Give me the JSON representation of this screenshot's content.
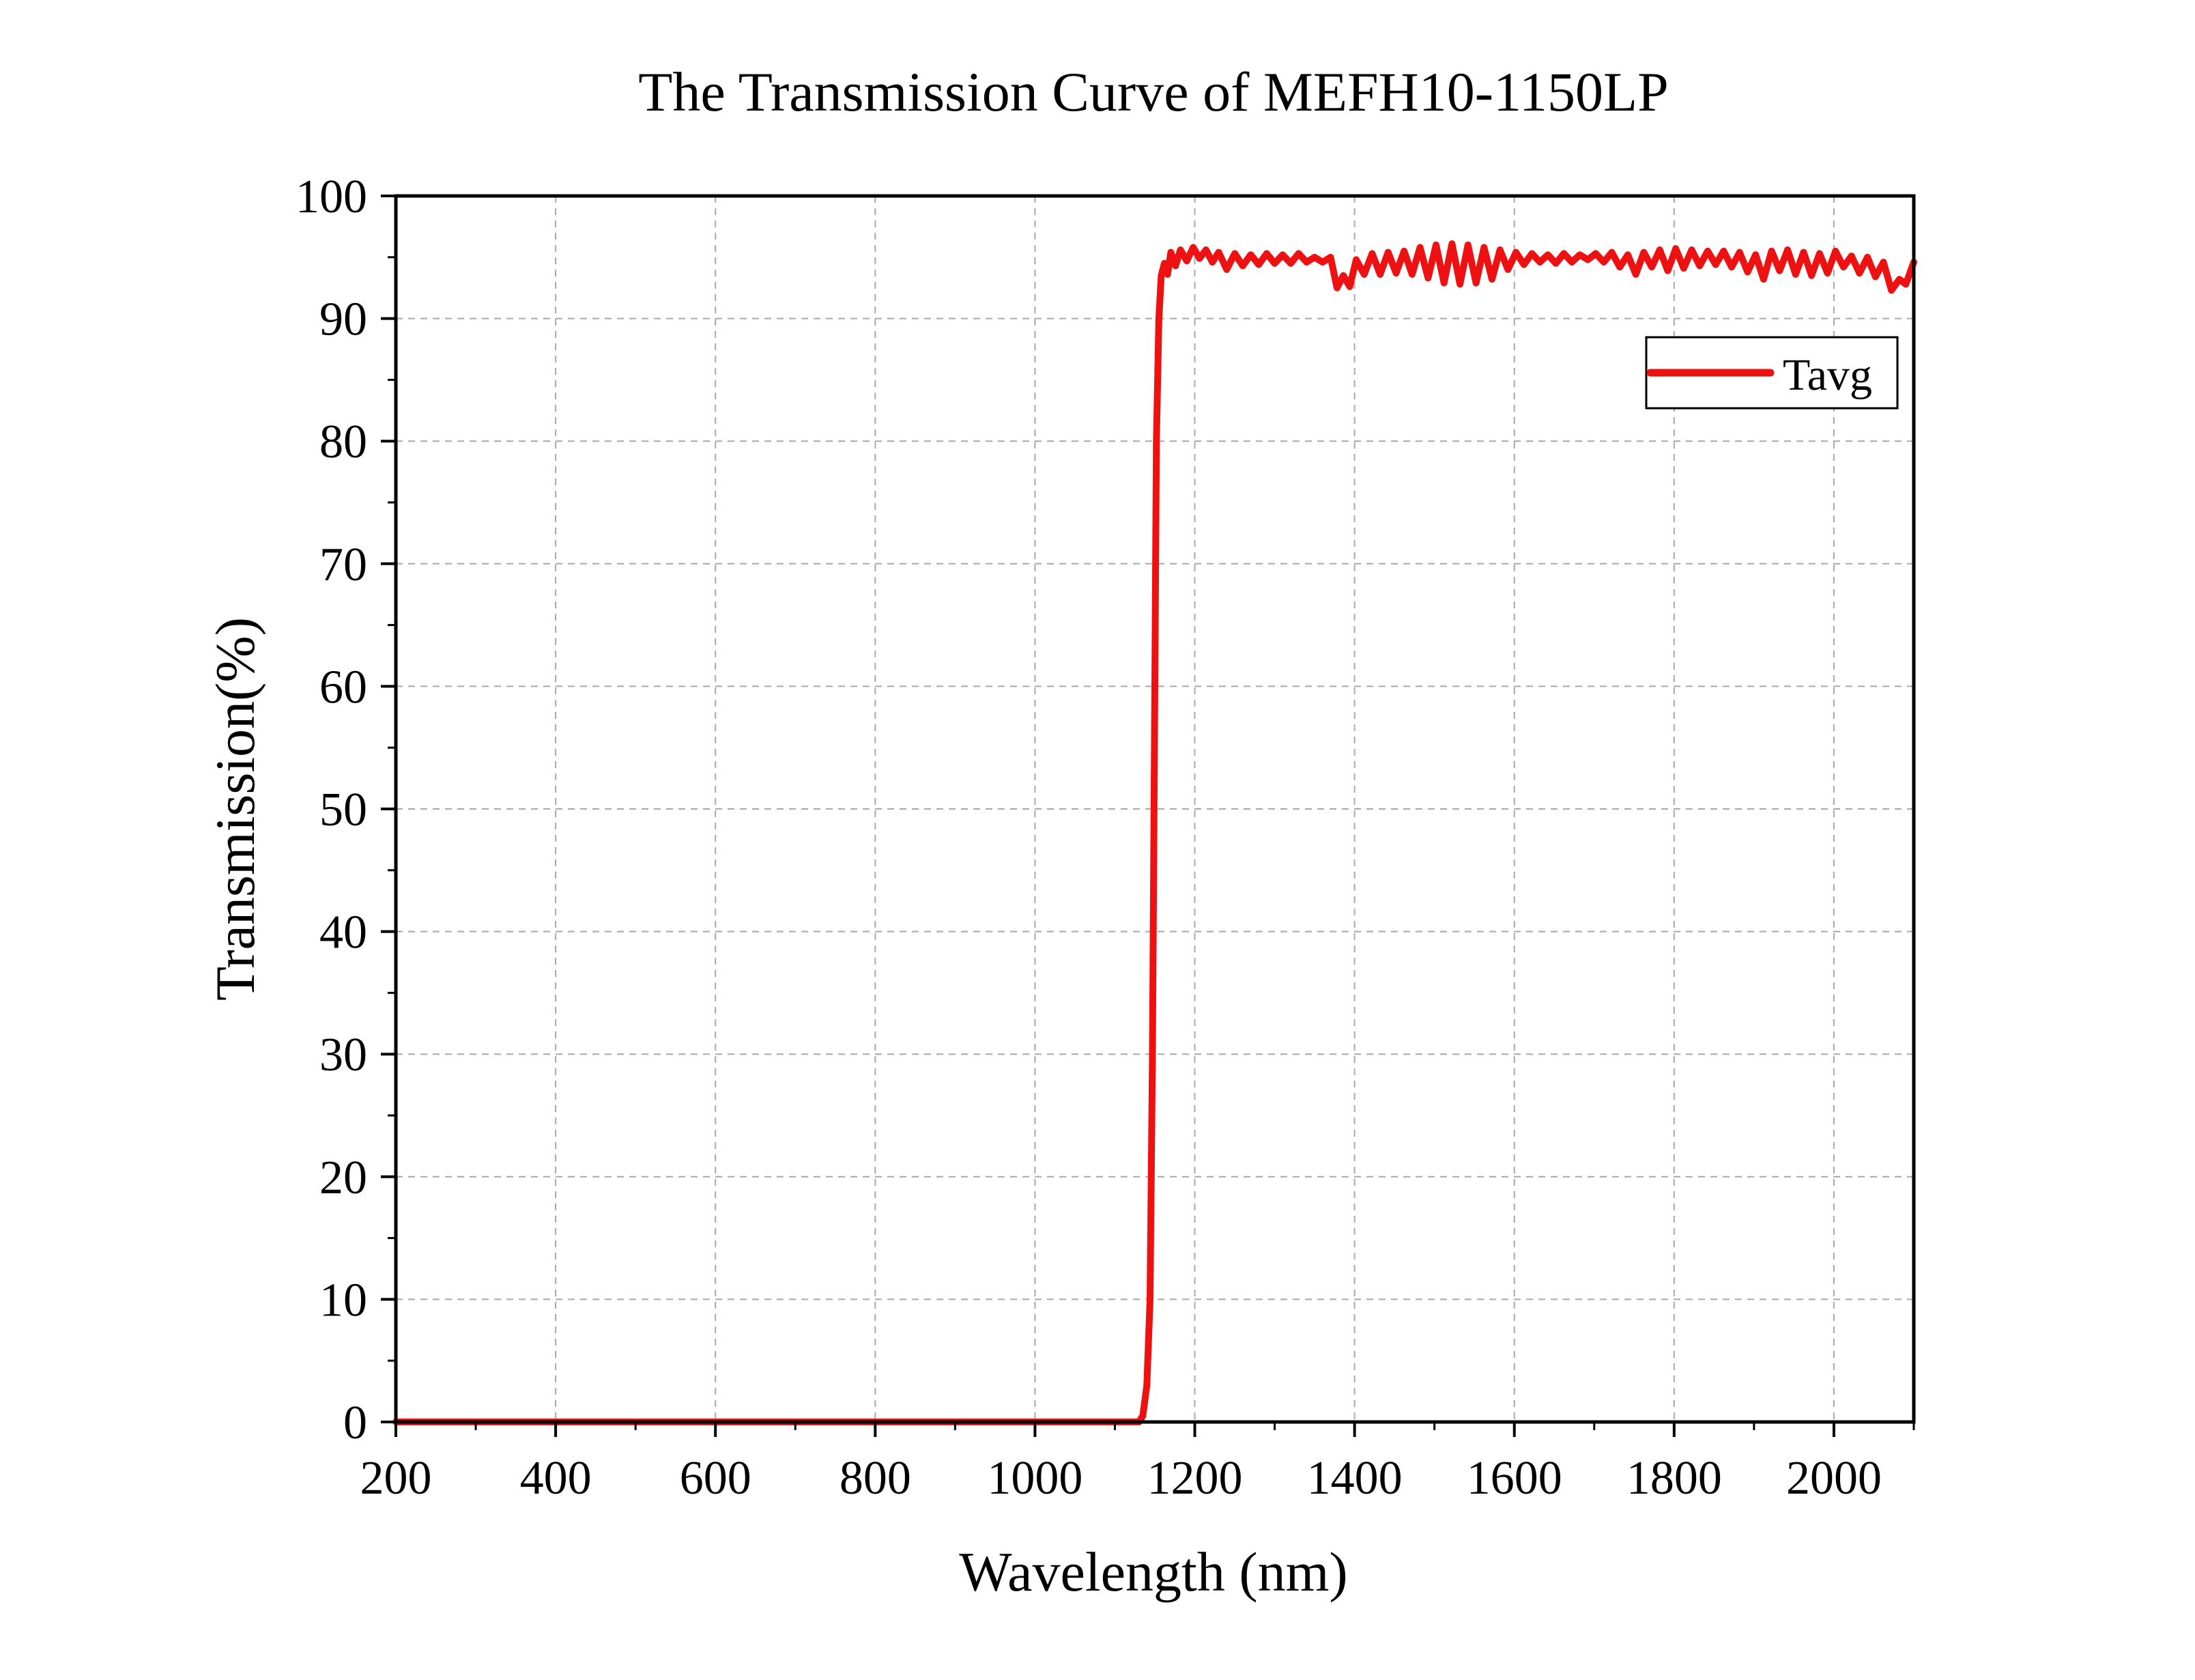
{
  "chart_data": {
    "type": "line",
    "title": "The Transmission Curve of MEFH10-1150LP",
    "xlabel": "Wavelength (nm)",
    "ylabel": "Transmission(%)",
    "xlim": [
      200,
      2100
    ],
    "ylim": [
      0,
      100
    ],
    "x_ticks": [
      200,
      400,
      600,
      800,
      1000,
      1200,
      1400,
      1600,
      1800,
      2000
    ],
    "y_ticks": [
      0,
      10,
      20,
      30,
      40,
      50,
      60,
      70,
      80,
      90,
      100
    ],
    "grid": true,
    "legend_position": "top-right",
    "series": [
      {
        "name": "Tavg",
        "color": "#ee1111",
        "points": [
          [
            200,
            0
          ],
          [
            1000,
            0
          ],
          [
            1130,
            0
          ],
          [
            1135,
            0.5
          ],
          [
            1140,
            3
          ],
          [
            1144,
            10
          ],
          [
            1147,
            30
          ],
          [
            1150,
            60
          ],
          [
            1152,
            80
          ],
          [
            1155,
            90
          ],
          [
            1158,
            93.5
          ],
          [
            1162,
            94.5
          ],
          [
            1166,
            93.6
          ],
          [
            1170,
            95.4
          ],
          [
            1176,
            94.3
          ],
          [
            1182,
            95.6
          ],
          [
            1190,
            94.7
          ],
          [
            1198,
            95.8
          ],
          [
            1206,
            94.9
          ],
          [
            1214,
            95.6
          ],
          [
            1222,
            94.6
          ],
          [
            1230,
            95.4
          ],
          [
            1240,
            94.0
          ],
          [
            1250,
            95.3
          ],
          [
            1260,
            94.3
          ],
          [
            1270,
            95.2
          ],
          [
            1280,
            94.4
          ],
          [
            1290,
            95.3
          ],
          [
            1300,
            94.5
          ],
          [
            1310,
            95.2
          ],
          [
            1320,
            94.5
          ],
          [
            1330,
            95.3
          ],
          [
            1340,
            94.6
          ],
          [
            1350,
            95.0
          ],
          [
            1360,
            94.6
          ],
          [
            1370,
            95.0
          ],
          [
            1378,
            92.5
          ],
          [
            1386,
            93.5
          ],
          [
            1394,
            92.6
          ],
          [
            1402,
            94.8
          ],
          [
            1412,
            93.6
          ],
          [
            1422,
            95.3
          ],
          [
            1432,
            93.6
          ],
          [
            1442,
            95.4
          ],
          [
            1452,
            93.7
          ],
          [
            1462,
            95.5
          ],
          [
            1472,
            93.6
          ],
          [
            1482,
            95.8
          ],
          [
            1492,
            93.3
          ],
          [
            1502,
            96.0
          ],
          [
            1512,
            92.9
          ],
          [
            1522,
            96.1
          ],
          [
            1532,
            92.8
          ],
          [
            1542,
            96.0
          ],
          [
            1552,
            92.9
          ],
          [
            1562,
            95.8
          ],
          [
            1572,
            93.2
          ],
          [
            1582,
            95.6
          ],
          [
            1592,
            94.0
          ],
          [
            1602,
            95.4
          ],
          [
            1612,
            94.4
          ],
          [
            1622,
            95.3
          ],
          [
            1632,
            94.6
          ],
          [
            1642,
            95.2
          ],
          [
            1652,
            94.5
          ],
          [
            1662,
            95.3
          ],
          [
            1672,
            94.6
          ],
          [
            1682,
            95.2
          ],
          [
            1692,
            94.8
          ],
          [
            1702,
            95.3
          ],
          [
            1712,
            94.6
          ],
          [
            1722,
            95.4
          ],
          [
            1732,
            94.2
          ],
          [
            1742,
            95.2
          ],
          [
            1752,
            93.6
          ],
          [
            1762,
            95.4
          ],
          [
            1772,
            94.2
          ],
          [
            1782,
            95.6
          ],
          [
            1792,
            93.9
          ],
          [
            1802,
            95.7
          ],
          [
            1812,
            94.1
          ],
          [
            1822,
            95.6
          ],
          [
            1832,
            94.3
          ],
          [
            1842,
            95.5
          ],
          [
            1852,
            94.4
          ],
          [
            1862,
            95.5
          ],
          [
            1872,
            94.2
          ],
          [
            1882,
            95.4
          ],
          [
            1892,
            93.8
          ],
          [
            1902,
            95.2
          ],
          [
            1912,
            93.2
          ],
          [
            1922,
            95.5
          ],
          [
            1932,
            93.9
          ],
          [
            1942,
            95.6
          ],
          [
            1952,
            93.6
          ],
          [
            1962,
            95.4
          ],
          [
            1972,
            93.5
          ],
          [
            1982,
            95.3
          ],
          [
            1992,
            93.7
          ],
          [
            2002,
            95.5
          ],
          [
            2012,
            94.2
          ],
          [
            2022,
            95.1
          ],
          [
            2032,
            93.7
          ],
          [
            2042,
            95.0
          ],
          [
            2052,
            93.4
          ],
          [
            2062,
            94.6
          ],
          [
            2072,
            92.3
          ],
          [
            2082,
            93.2
          ],
          [
            2090,
            92.8
          ],
          [
            2100,
            94.6
          ]
        ]
      }
    ]
  }
}
